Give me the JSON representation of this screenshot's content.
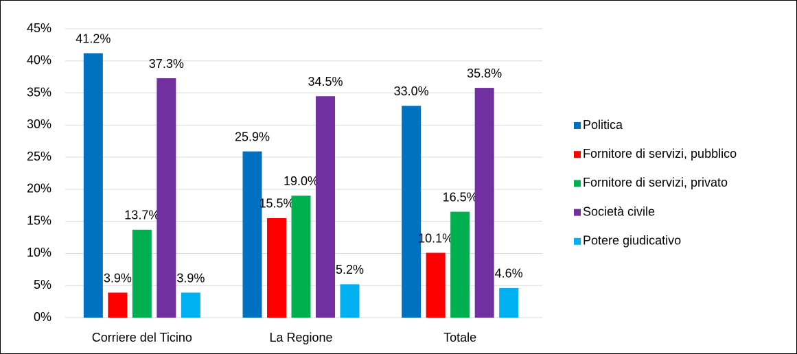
{
  "chart_data": {
    "type": "bar",
    "categories": [
      "Corriere del Ticino",
      "La Regione",
      "Totale"
    ],
    "series": [
      {
        "name": "Politica",
        "color": "#0070c0",
        "values": [
          41.2,
          25.9,
          33.0
        ],
        "value_labels": [
          "41.2%",
          "25.9%",
          "33.0%"
        ]
      },
      {
        "name": "Fornitore di servizi, pubblico",
        "color": "#ff0000",
        "values": [
          3.9,
          15.5,
          10.1
        ],
        "value_labels": [
          "3.9%",
          "15.5%",
          "10.1%"
        ]
      },
      {
        "name": "Fornitore di servizi, privato",
        "color": "#00b050",
        "values": [
          13.7,
          19.0,
          16.5
        ],
        "value_labels": [
          "13.7%",
          "19.0%",
          "16.5%"
        ]
      },
      {
        "name": "Società civile",
        "color": "#7030a0",
        "values": [
          37.3,
          34.5,
          35.8
        ],
        "value_labels": [
          "37.3%",
          "34.5%",
          "35.8%"
        ]
      },
      {
        "name": "Potere giudicativo",
        "color": "#00b0f0",
        "values": [
          3.9,
          5.2,
          4.6
        ],
        "value_labels": [
          "3.9%",
          "5.2%",
          "4.6%"
        ]
      }
    ],
    "ylim": [
      0,
      45
    ],
    "yticks": [
      {
        "value": 0,
        "label": "0%"
      },
      {
        "value": 5,
        "label": "5%"
      },
      {
        "value": 10,
        "label": "10%"
      },
      {
        "value": 15,
        "label": "15%"
      },
      {
        "value": 20,
        "label": "20%"
      },
      {
        "value": 25,
        "label": "25%"
      },
      {
        "value": 30,
        "label": "30%"
      },
      {
        "value": 35,
        "label": "35%"
      },
      {
        "value": 40,
        "label": "40%"
      },
      {
        "value": 45,
        "label": "45%"
      }
    ],
    "grid": true,
    "legend": "right"
  }
}
